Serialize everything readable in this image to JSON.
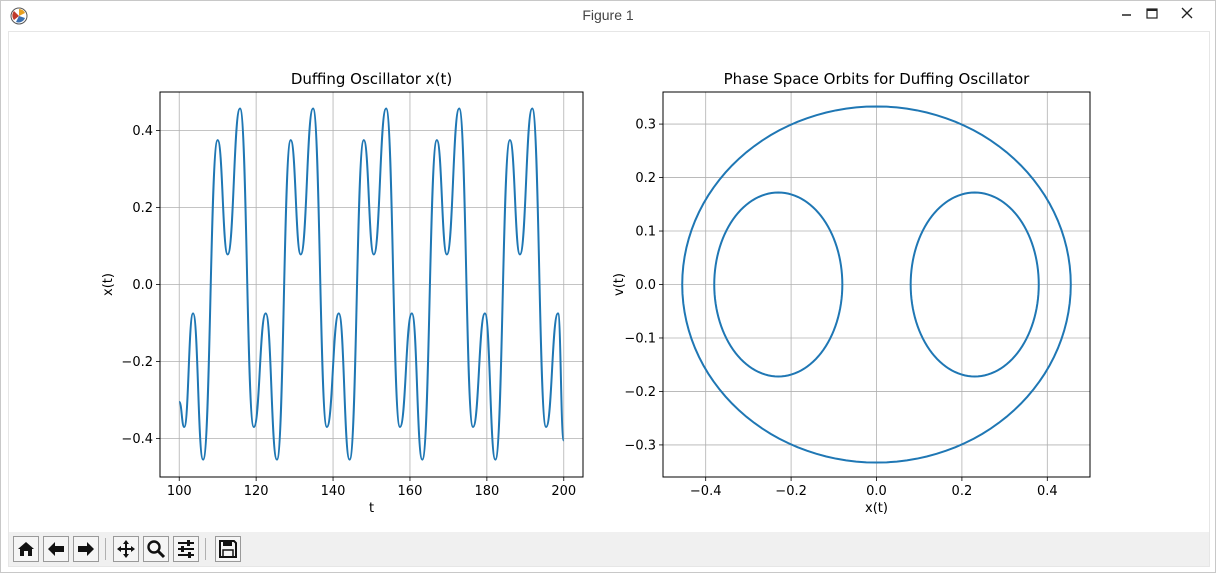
{
  "window": {
    "title": "Figure 1"
  },
  "icons": [
    "matplotlib-icon",
    "minimize-icon",
    "maximize-icon",
    "close-icon",
    "home-icon",
    "back-arrow-icon",
    "forward-arrow-icon",
    "pan-icon",
    "zoom-icon",
    "configure-subplots-icon",
    "save-icon"
  ],
  "chart_data": [
    {
      "type": "line",
      "title": "Duffing Oscillator x(t)",
      "xlabel": "t",
      "ylabel": "x(t)",
      "xlim": [
        95,
        205
      ],
      "ylim": [
        -0.5,
        0.5
      ],
      "xticks": [
        "100",
        "120",
        "140",
        "160",
        "180",
        "200"
      ],
      "yticks": [
        "−0.4",
        "−0.2",
        "0.0",
        "0.2",
        "0.4"
      ],
      "grid": true,
      "color": "#1f77b4",
      "x": [
        100,
        101.3,
        103.6,
        106.2,
        110.0,
        112.6,
        115.8,
        119.4,
        122.5,
        125.4,
        129.0,
        131.6,
        134.8,
        138.4,
        141.5,
        144.3,
        148.0,
        150.6,
        153.8,
        157.4,
        160.5,
        163.2,
        167.0,
        169.6,
        172.8,
        176.4,
        179.5,
        182.2,
        186.0,
        188.6,
        191.8,
        195.4,
        198.5,
        200
      ],
      "values": [
        -0.305,
        -0.37,
        -0.075,
        -0.455,
        0.375,
        0.078,
        0.457,
        -0.37,
        -0.075,
        -0.455,
        0.375,
        0.078,
        0.457,
        -0.37,
        -0.075,
        -0.455,
        0.375,
        0.078,
        0.457,
        -0.37,
        -0.075,
        -0.455,
        0.375,
        0.078,
        0.457,
        -0.37,
        -0.075,
        -0.455,
        0.375,
        0.078,
        0.457,
        -0.37,
        -0.075,
        -0.405
      ]
    },
    {
      "type": "line",
      "title": "Phase Space Orbits for Duffing Oscillator",
      "xlabel": "x(t)",
      "ylabel": "v(t)",
      "xlim": [
        -0.5,
        0.5
      ],
      "ylim": [
        -0.36,
        0.36
      ],
      "xticks": [
        "−0.4",
        "−0.2",
        "0.0",
        "0.2",
        "0.4"
      ],
      "yticks": [
        "−0.3",
        "−0.2",
        "−0.1",
        "0.0",
        "0.1",
        "0.2",
        "0.3"
      ],
      "grid": true,
      "color": "#1f77b4",
      "orbits": [
        {
          "x_center": 0.0,
          "x_radius": 0.455,
          "v_radius": 0.333
        },
        {
          "x_center": -0.23,
          "x_radius": 0.15,
          "v_radius": 0.172
        },
        {
          "x_center": 0.23,
          "x_radius": 0.15,
          "v_radius": 0.172
        }
      ]
    }
  ]
}
